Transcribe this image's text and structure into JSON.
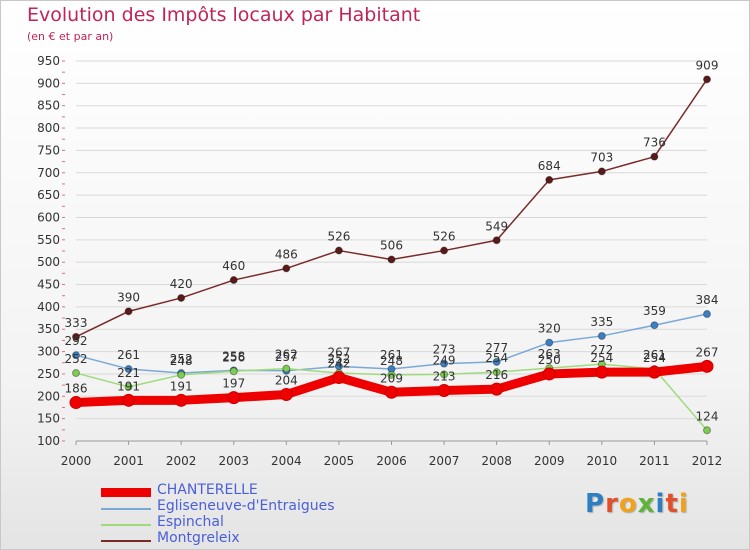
{
  "title": "Evolution des Impôts locaux par Habitant",
  "subtitle": "(en € et par an)",
  "colors": {
    "title": "#c0245a",
    "legend_text": "#4a5fd8",
    "grid": "#d9d9d9",
    "axis_tick_marks": "#e07070"
  },
  "logo": {
    "text": "Proxiti",
    "letter_colors": [
      "#2e7fc2",
      "#e2502b",
      "#f0a21b",
      "#5db33b",
      "#2e7fc2",
      "#e2502b",
      "#f0a21b"
    ]
  },
  "chart_data": {
    "type": "line",
    "x": [
      "2000",
      "2001",
      "2002",
      "2003",
      "2004",
      "2005",
      "2006",
      "2007",
      "2008",
      "2009",
      "2010",
      "2011",
      "2012"
    ],
    "ylim": [
      100,
      950
    ],
    "yticks": [
      100,
      150,
      200,
      250,
      300,
      350,
      400,
      450,
      500,
      550,
      600,
      650,
      700,
      750,
      800,
      850,
      900,
      950
    ],
    "grid": "horizontal",
    "legend_position": "bottom-left",
    "series": [
      {
        "name": "CHANTERELLE",
        "color": "#ee0000",
        "marker": "#ee0000",
        "width": "thick",
        "values": [
          186,
          191,
          191,
          197,
          204,
          242,
          209,
          213,
          216,
          250,
          254,
          254,
          267
        ]
      },
      {
        "name": "Egliseneuve-d'Entraigues",
        "color": "#7aa9d6",
        "marker": "#3b7fc4",
        "width": "thin",
        "values": [
          292,
          261,
          252,
          258,
          257,
          267,
          261,
          273,
          277,
          320,
          335,
          359,
          384
        ]
      },
      {
        "name": "Espinchal",
        "color": "#9fdb7d",
        "marker": "#7ccd52",
        "width": "thin",
        "values": [
          252,
          221,
          248,
          256,
          262,
          252,
          248,
          249,
          254,
          263,
          272,
          261,
          124
        ]
      },
      {
        "name": "Montgreleix",
        "color": "#7a2a2a",
        "marker": "#5a1a1a",
        "width": "thin",
        "values": [
          333,
          390,
          420,
          460,
          486,
          526,
          506,
          526,
          549,
          684,
          703,
          736,
          909
        ]
      }
    ],
    "point_labels": [
      [
        "186",
        "191",
        "191",
        "197",
        "204",
        "242",
        "209",
        "213",
        "216",
        "250",
        "254",
        "254",
        "267"
      ],
      [
        "292",
        "261",
        "252",
        "258",
        "257",
        "267",
        "261",
        "273",
        "277",
        "320",
        "335",
        "359",
        "384"
      ],
      [
        "252",
        "221",
        "248",
        "256",
        "262",
        "252",
        "248",
        "249",
        "254",
        "263",
        "272",
        "261",
        "124"
      ],
      [
        "333",
        "390",
        "420",
        "460",
        "486",
        "526",
        "506",
        "526",
        "549",
        "684",
        "703",
        "736",
        "909"
      ]
    ]
  }
}
